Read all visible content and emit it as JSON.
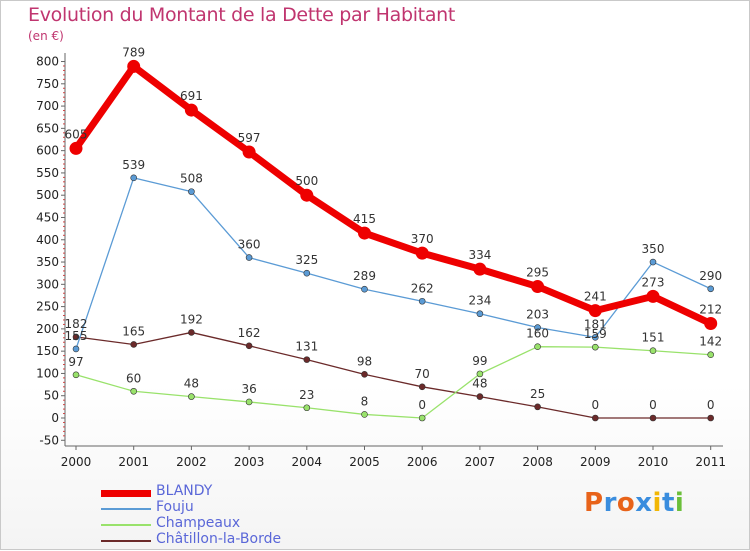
{
  "title": "Evolution du Montant de la Dette par Habitant",
  "unit": "(en €)",
  "logo": "Proxiti",
  "colors": {
    "BLANDY": "#ee0000",
    "Fouju": "#5b9bd5",
    "Champeaux": "#99e26b",
    "Chatillon": "#6b2a2a",
    "title": "#c0356f",
    "legend_text": "#5a67d8"
  },
  "chart_data": {
    "type": "line",
    "title": "Evolution du Montant de la Dette par Habitant",
    "ylabel": "(en €)",
    "xlabel": "",
    "x": [
      "2000",
      "2001",
      "2002",
      "2003",
      "2004",
      "2005",
      "2006",
      "2007",
      "2008",
      "2009",
      "2010",
      "2011"
    ],
    "yticks": [
      -50,
      0,
      50,
      100,
      150,
      200,
      250,
      300,
      350,
      400,
      450,
      500,
      550,
      600,
      650,
      700,
      750,
      800
    ],
    "ylim": [
      -50,
      800
    ],
    "grid": false,
    "legend_position": "bottom-left",
    "series": [
      {
        "name": "BLANDY",
        "values": [
          605,
          789,
          691,
          597,
          500,
          415,
          370,
          334,
          295,
          241,
          273,
          212
        ]
      },
      {
        "name": "Fouju",
        "values": [
          155,
          539,
          508,
          360,
          325,
          289,
          262,
          234,
          203,
          181,
          350,
          290
        ]
      },
      {
        "name": "Champeaux",
        "values": [
          97,
          60,
          48,
          36,
          23,
          8,
          0,
          99,
          160,
          159,
          151,
          142
        ]
      },
      {
        "name": "Châtillon-la-Borde",
        "values": [
          182,
          165,
          192,
          162,
          131,
          98,
          70,
          48,
          25,
          0,
          0,
          0
        ]
      }
    ]
  }
}
